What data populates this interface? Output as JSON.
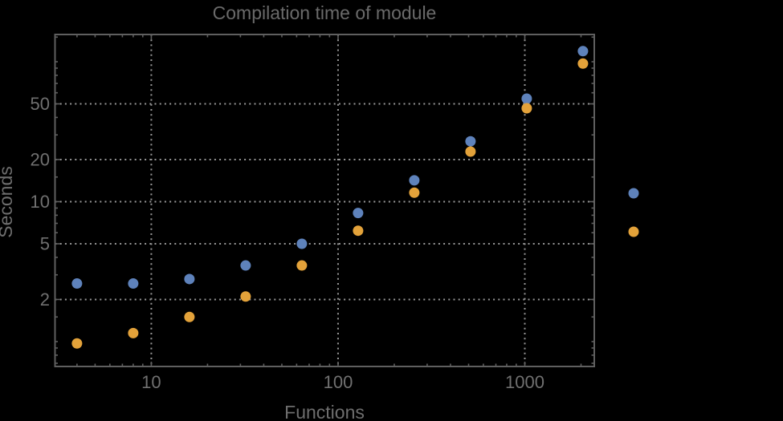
{
  "colors": {
    "background": "#000000",
    "frame": "#5f5f5f",
    "grid": "#979797",
    "title_text": "#6a6a6a",
    "label_text": "#6e6e6e",
    "tick_text": "#707070",
    "series_blue": "#5e82bb",
    "series_orange": "#e3a23a"
  },
  "chart_data": {
    "type": "scatter",
    "title": "Compilation time of module",
    "xlabel": "Functions",
    "ylabel": "Seconds",
    "x_scale": "log",
    "y_scale": "log",
    "grid": "dotted major gridlines only",
    "xlim": [
      3.05,
      2355
    ],
    "ylim": [
      0.664,
      156.6
    ],
    "x": [
      4,
      8,
      16,
      32,
      64,
      128,
      256,
      512,
      1024,
      2048
    ],
    "series": [
      {
        "name": "series-blue",
        "marker": "circle",
        "values": [
          2.6,
          2.6,
          2.8,
          3.5,
          5.0,
          8.3,
          14.2,
          27,
          54.5,
          119
        ]
      },
      {
        "name": "series-orange",
        "marker": "circle",
        "values": [
          0.97,
          1.15,
          1.5,
          2.1,
          3.5,
          6.2,
          11.6,
          22.8,
          46.5,
          97
        ]
      }
    ],
    "x_major_ticks": [
      10,
      100,
      1000
    ],
    "x_major_labels": [
      "10",
      "100",
      "1000"
    ],
    "x_minor_ticks": [
      4,
      5,
      6,
      7,
      8,
      9,
      20,
      30,
      40,
      50,
      60,
      70,
      80,
      90,
      200,
      300,
      400,
      500,
      600,
      700,
      800,
      900,
      2000
    ],
    "y_major_ticks": [
      2,
      5,
      10,
      20,
      50
    ],
    "y_major_labels": [
      "2",
      "5",
      "10",
      "20",
      "50"
    ],
    "y_minor_ticks": [
      0.7,
      0.8,
      0.9,
      1,
      1.5,
      3,
      4,
      6,
      7,
      8,
      9,
      15,
      30,
      40,
      60,
      70,
      80,
      90,
      100,
      150
    ],
    "legend": {
      "position": "outside-right",
      "labels_visible": false,
      "entries": [
        {
          "series": "series-blue"
        },
        {
          "series": "series-orange"
        }
      ]
    }
  }
}
